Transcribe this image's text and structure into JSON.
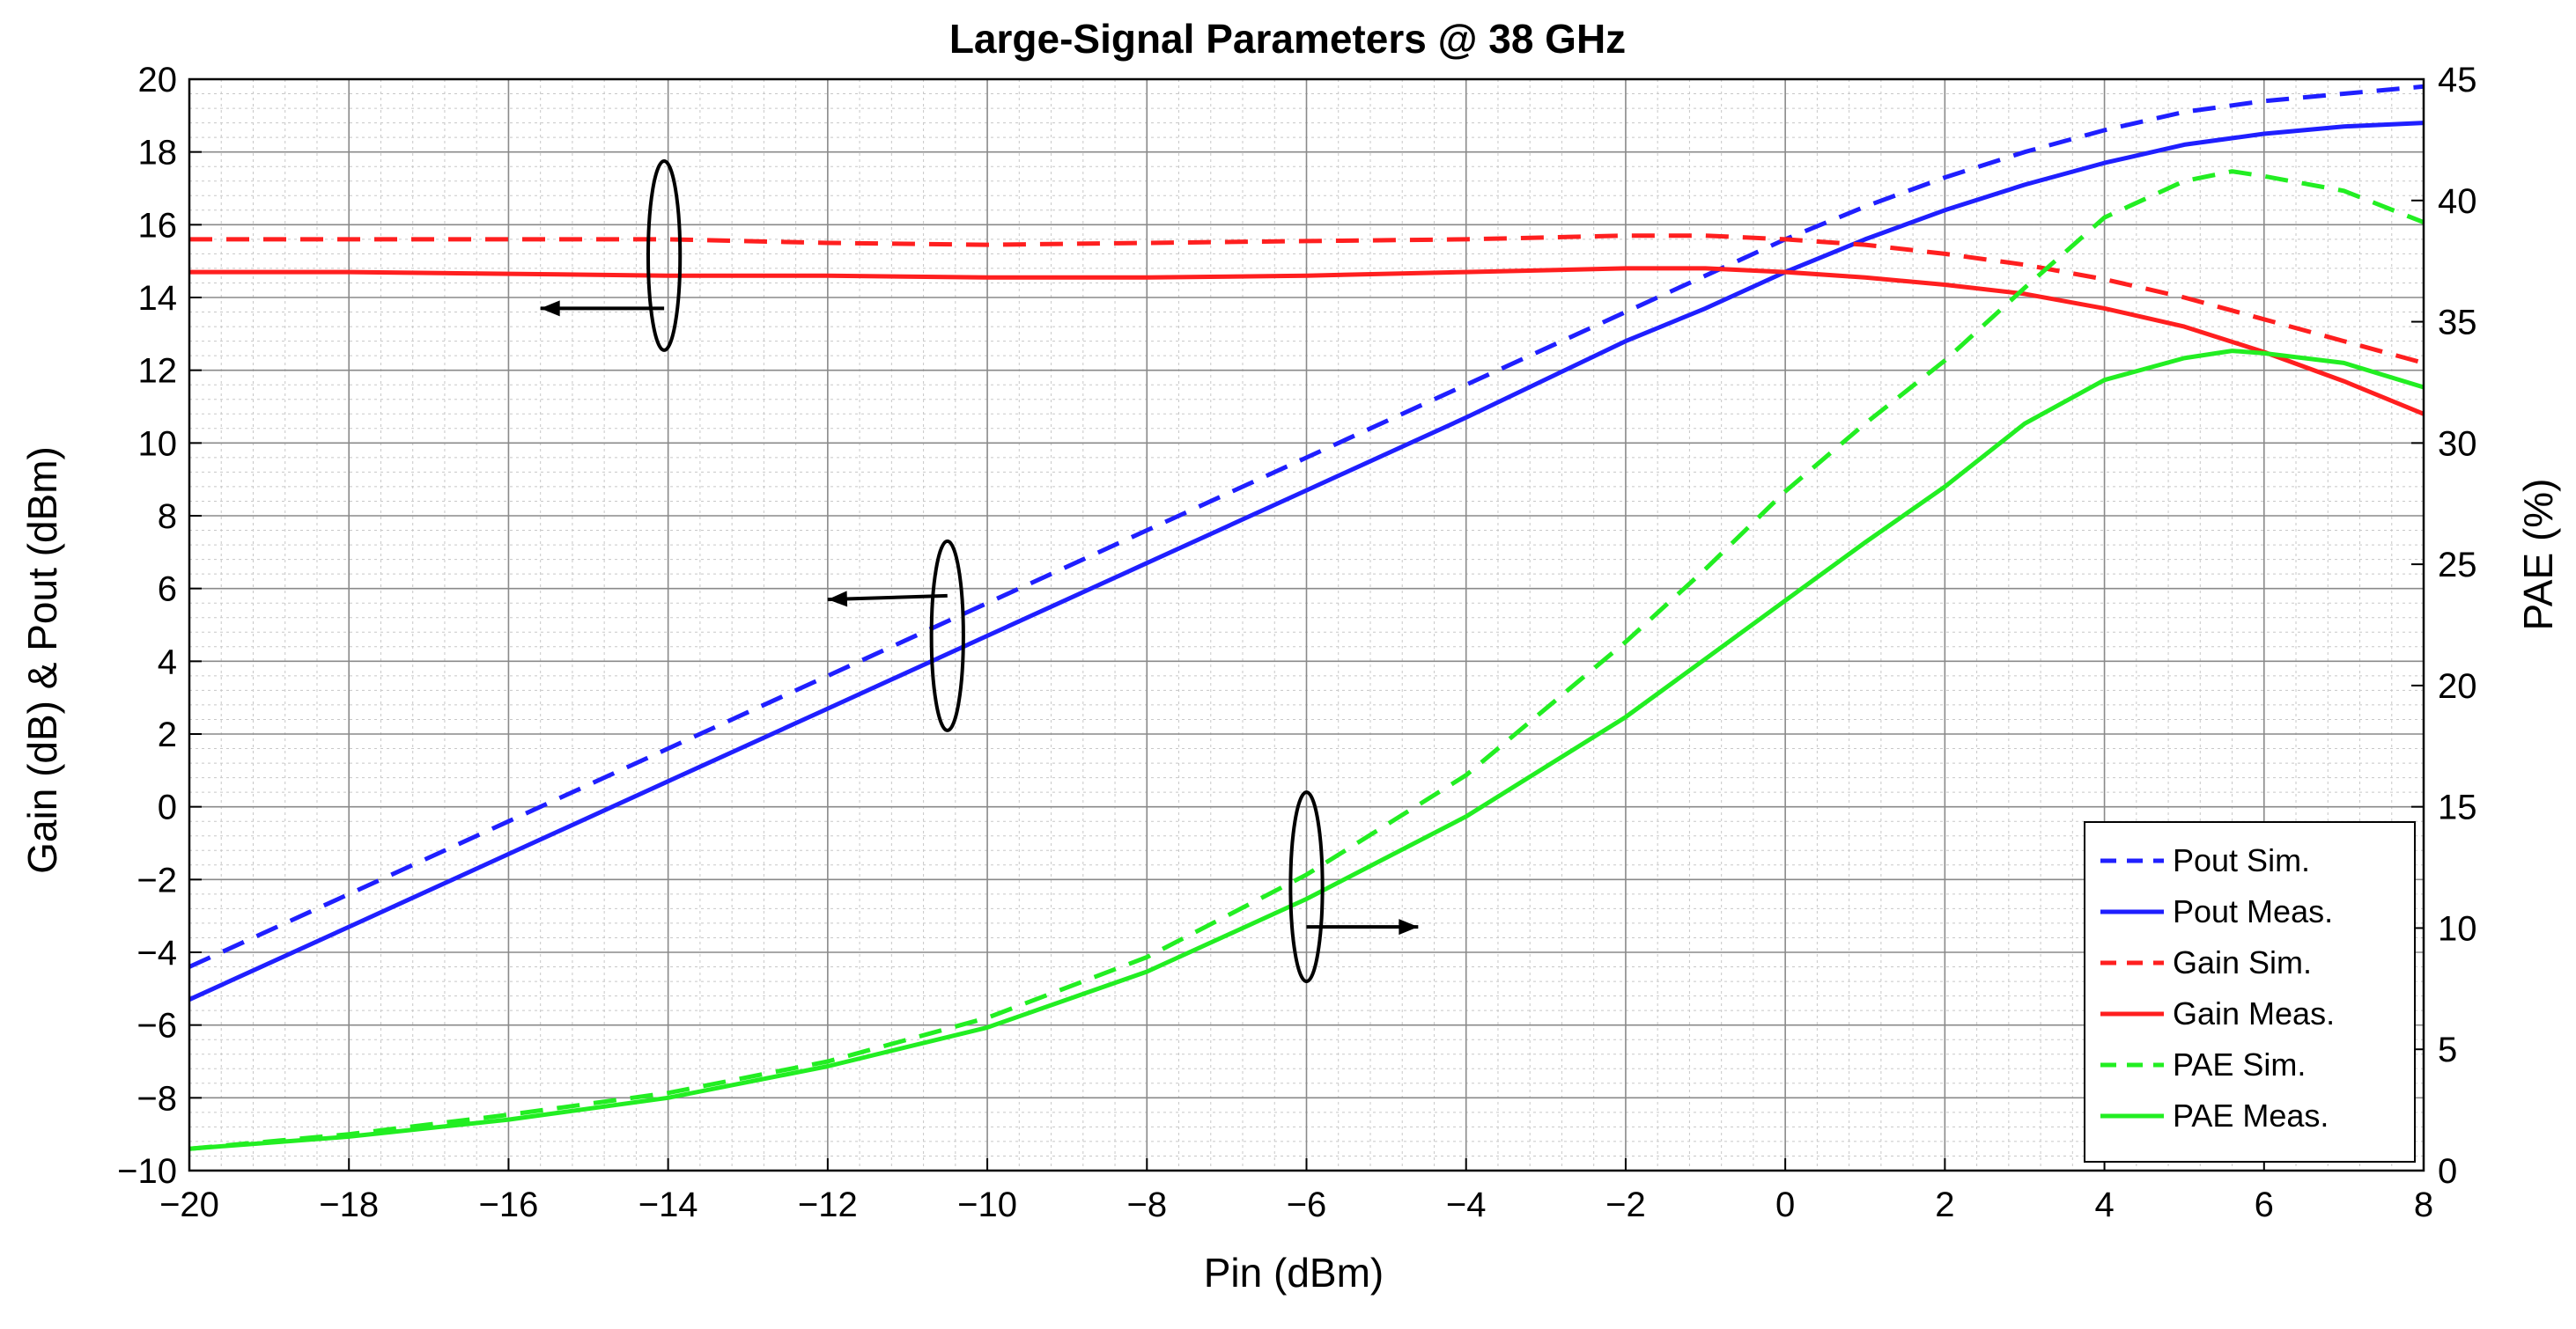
{
  "chart_data": {
    "type": "line",
    "title": "Large-Signal Parameters @ 38 GHz",
    "xlabel": "Pin (dBm)",
    "ylabel_left": "Gain (dB) & Pout (dBm)",
    "ylabel_right": "PAE (%)",
    "xlim": [
      -20,
      8
    ],
    "ylim_left": [
      -10,
      20
    ],
    "ylim_right": [
      0,
      45
    ],
    "x_ticks": [
      -20,
      -18,
      -16,
      -14,
      -12,
      -10,
      -8,
      -6,
      -4,
      -2,
      0,
      2,
      4,
      6,
      8
    ],
    "x_tick_labels": [
      "−20",
      "−18",
      "−16",
      "−14",
      "−12",
      "−10",
      "−8",
      "−6",
      "−4",
      "−2",
      "0",
      "2",
      "4",
      "6",
      "8"
    ],
    "y_left_ticks": [
      -10,
      -8,
      -6,
      -4,
      -2,
      0,
      2,
      4,
      6,
      8,
      10,
      12,
      14,
      16,
      18,
      20
    ],
    "y_left_tick_labels": [
      "−10",
      "−8",
      "−6",
      "−4",
      "−2",
      "0",
      "2",
      "4",
      "6",
      "8",
      "10",
      "12",
      "14",
      "16",
      "18",
      "20"
    ],
    "y_right_ticks": [
      0,
      5,
      10,
      15,
      20,
      25,
      30,
      35,
      40,
      45
    ],
    "y_right_tick_labels": [
      "0",
      "5",
      "10",
      "15",
      "20",
      "25",
      "30",
      "35",
      "40",
      "45"
    ],
    "grid": true,
    "minor_grid": true,
    "legend_position": "bottom-right",
    "series": [
      {
        "name": "Pout Sim.",
        "axis": "left",
        "color": "#1f1fff",
        "dash": true,
        "x": [
          -20,
          -18,
          -16,
          -14,
          -12,
          -10,
          -8,
          -6,
          -4,
          -2,
          -1,
          0,
          1,
          2,
          3,
          4,
          5,
          6,
          7,
          8
        ],
        "y": [
          -4.4,
          -2.4,
          -0.4,
          1.6,
          3.6,
          5.6,
          7.6,
          9.6,
          11.6,
          13.6,
          14.6,
          15.6,
          16.5,
          17.3,
          18.0,
          18.6,
          19.1,
          19.4,
          19.6,
          19.8
        ]
      },
      {
        "name": "Pout Meas.",
        "axis": "left",
        "color": "#1f1fff",
        "dash": false,
        "x": [
          -20,
          -18,
          -16,
          -14,
          -12,
          -10,
          -8,
          -6,
          -4,
          -2,
          -1,
          0,
          1,
          2,
          3,
          4,
          5,
          6,
          7,
          8
        ],
        "y": [
          -5.3,
          -3.3,
          -1.3,
          0.7,
          2.7,
          4.7,
          6.7,
          8.7,
          10.7,
          12.8,
          13.7,
          14.7,
          15.6,
          16.4,
          17.1,
          17.7,
          18.2,
          18.5,
          18.7,
          18.8
        ]
      },
      {
        "name": "Gain Sim.",
        "axis": "left",
        "color": "#ff1f1f",
        "dash": true,
        "x": [
          -20,
          -18,
          -16,
          -14,
          -12,
          -10,
          -8,
          -6,
          -4,
          -2,
          -1,
          0,
          1,
          2,
          3,
          4,
          5,
          6,
          7,
          8
        ],
        "y": [
          15.6,
          15.6,
          15.6,
          15.6,
          15.5,
          15.45,
          15.5,
          15.55,
          15.6,
          15.7,
          15.7,
          15.6,
          15.45,
          15.2,
          14.9,
          14.5,
          14.0,
          13.4,
          12.8,
          12.2
        ]
      },
      {
        "name": "Gain Meas.",
        "axis": "left",
        "color": "#ff1f1f",
        "dash": false,
        "x": [
          -20,
          -18,
          -16,
          -14,
          -12,
          -10,
          -8,
          -6,
          -4,
          -2,
          -1,
          0,
          1,
          2,
          3,
          4,
          5,
          6,
          7,
          8
        ],
        "y": [
          14.7,
          14.7,
          14.65,
          14.6,
          14.6,
          14.55,
          14.55,
          14.6,
          14.7,
          14.8,
          14.8,
          14.7,
          14.55,
          14.35,
          14.1,
          13.7,
          13.2,
          12.5,
          11.7,
          10.8
        ]
      },
      {
        "name": "PAE Sim.",
        "axis": "right",
        "color": "#22ee22",
        "dash": true,
        "x": [
          -20,
          -18,
          -16,
          -14,
          -12,
          -10,
          -8,
          -6,
          -4,
          -2,
          -1,
          0,
          1,
          2,
          3,
          4,
          5,
          5.6,
          6,
          7,
          8
        ],
        "y": [
          0.9,
          1.5,
          2.3,
          3.2,
          4.5,
          6.3,
          8.8,
          12.2,
          16.3,
          21.8,
          24.8,
          28.0,
          30.8,
          33.4,
          36.4,
          39.3,
          40.8,
          41.2,
          41.0,
          40.4,
          39.1
        ]
      },
      {
        "name": "PAE Meas.",
        "axis": "right",
        "color": "#22ee22",
        "dash": false,
        "x": [
          -20,
          -18,
          -16,
          -14,
          -12,
          -10,
          -8,
          -6,
          -4,
          -2,
          -1,
          0,
          1,
          2,
          3,
          4,
          5,
          5.6,
          6,
          7,
          8
        ],
        "y": [
          0.9,
          1.4,
          2.1,
          3.0,
          4.3,
          5.9,
          8.2,
          11.2,
          14.6,
          18.7,
          21.1,
          23.5,
          25.9,
          28.2,
          30.8,
          32.6,
          33.5,
          33.8,
          33.7,
          33.3,
          32.3
        ]
      }
    ],
    "annotations": [
      {
        "axis": "left",
        "cx": -14.05,
        "cy": 15.15,
        "rx_units": 0.2,
        "ry_units": 2.6,
        "arrow_from": [
          -14.05,
          13.7
        ],
        "arrow_to": [
          -15.6,
          13.7
        ]
      },
      {
        "axis": "left",
        "cx": -10.5,
        "cy": 4.7,
        "rx_units": 0.2,
        "ry_units": 2.6,
        "arrow_from": [
          -10.5,
          5.8
        ],
        "arrow_to": [
          -12.0,
          5.7
        ]
      },
      {
        "axis": "left",
        "cx": -6.0,
        "cy": -2.2,
        "rx_units": 0.2,
        "ry_units": 2.6,
        "arrow_from": [
          -6.0,
          -3.3
        ],
        "arrow_to": [
          -4.6,
          -3.3
        ]
      }
    ]
  }
}
